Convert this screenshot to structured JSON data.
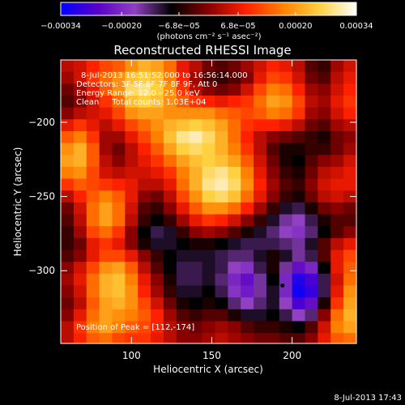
{
  "chart_data": {
    "type": "heatmap",
    "title": "Reconstructed RHESSI Image",
    "xlabel": "Heliocentric X (arcsec)",
    "ylabel": "Heliocentric Y (arcsec)",
    "xlim": [
      56,
      240
    ],
    "ylim": [
      -349,
      -158
    ],
    "x_ticks": [
      100,
      150,
      200
    ],
    "y_ticks": [
      -200,
      -250,
      -300
    ],
    "colorbar": {
      "range": [
        -0.00034,
        0.00034
      ],
      "ticks": [
        {
          "value": -0.00034,
          "label": "−0.00034"
        },
        {
          "value": -0.0002,
          "label": "−0.00020"
        },
        {
          "value": -6.8e-05,
          "label": "−6.8e−05"
        },
        {
          "value": 6.8e-05,
          "label": "6.8e−05"
        },
        {
          "value": 0.0002,
          "label": "0.00020"
        },
        {
          "value": 0.00034,
          "label": "0.00034"
        }
      ],
      "unit_label": "(photons cm⁻² s⁻¹ asec⁻²)",
      "colormap": [
        "#0000ff",
        "#5a00c8",
        "#9040c0",
        "#000000",
        "#880000",
        "#ff2000",
        "#ff8000",
        "#ffd040",
        "#ffffff"
      ]
    },
    "annotations": [
      "8-Jul-2013 16:51:52.000 to 16:56:14.000",
      "Detectors: 3F 5F 6F 7F 8F 9F, Att 0",
      "Energy Range: 12.0 - 25.0 keV",
      "Clean     Total counts: 1.03E+04"
    ],
    "peak_text": "Position of Peak = [112,-174]",
    "peak": [
      112,
      -174
    ],
    "marker": [
      194,
      -310
    ],
    "cells_x": [
      60,
      68,
      76,
      84,
      92,
      100,
      108,
      116,
      124,
      132,
      140,
      148,
      156,
      164,
      172,
      180,
      188,
      196,
      204,
      212,
      220,
      228,
      236
    ],
    "cells_y": [
      -162,
      -170,
      -178,
      -186,
      -194,
      -202,
      -210,
      -218,
      -226,
      -234,
      -242,
      -250,
      -258,
      -266,
      -274,
      -282,
      -290,
      -298,
      -306,
      -314,
      -322,
      -330,
      -338,
      -346
    ],
    "grid_values": [
      [
        0.1,
        0.15,
        0.25,
        0.35,
        0.4,
        0.55,
        0.65,
        0.6,
        0.45,
        0.2,
        0.1,
        -0.05,
        -0.1,
        -0.05,
        0.05,
        0.15,
        0.25,
        0.2,
        0.1,
        -0.1,
        -0.15,
        0.05,
        0.15
      ],
      [
        0.05,
        0.15,
        0.3,
        0.45,
        0.55,
        0.7,
        0.75,
        0.7,
        0.5,
        0.25,
        0.05,
        -0.1,
        -0.15,
        -0.1,
        0.0,
        0.2,
        0.35,
        0.3,
        0.15,
        -0.05,
        -0.1,
        0.1,
        0.2
      ],
      [
        -0.05,
        0.05,
        0.2,
        0.4,
        0.55,
        0.8,
        0.85,
        0.75,
        0.55,
        0.3,
        0.1,
        0.0,
        -0.05,
        0.0,
        0.15,
        0.35,
        0.5,
        0.45,
        0.25,
        0.05,
        0.0,
        0.15,
        0.25
      ],
      [
        -0.1,
        0.0,
        0.15,
        0.3,
        0.45,
        0.7,
        0.75,
        0.7,
        0.55,
        0.4,
        0.3,
        0.25,
        0.2,
        0.25,
        0.3,
        0.45,
        0.6,
        0.55,
        0.35,
        0.1,
        0.05,
        0.2,
        0.3
      ],
      [
        0.0,
        0.1,
        0.15,
        0.2,
        0.35,
        0.55,
        0.6,
        0.6,
        0.55,
        0.55,
        0.55,
        0.55,
        0.45,
        0.4,
        0.35,
        0.4,
        0.5,
        0.45,
        0.3,
        0.05,
        0.0,
        0.15,
        0.25
      ],
      [
        0.2,
        0.3,
        0.2,
        0.1,
        0.2,
        0.35,
        0.45,
        0.55,
        0.65,
        0.7,
        0.75,
        0.7,
        0.6,
        0.45,
        0.3,
        0.25,
        0.25,
        0.2,
        0.1,
        -0.05,
        -0.1,
        0.05,
        0.1
      ],
      [
        0.4,
        0.5,
        0.3,
        0.05,
        0.05,
        0.2,
        0.35,
        0.5,
        0.7,
        0.85,
        0.9,
        0.8,
        0.65,
        0.45,
        0.25,
        0.1,
        0.0,
        -0.05,
        -0.1,
        -0.15,
        -0.2,
        -0.05,
        0.0
      ],
      [
        0.55,
        0.65,
        0.4,
        0.05,
        -0.05,
        0.1,
        0.25,
        0.4,
        0.6,
        0.75,
        0.8,
        0.75,
        0.65,
        0.5,
        0.3,
        0.1,
        -0.1,
        -0.2,
        -0.2,
        -0.15,
        -0.15,
        -0.05,
        0.05
      ],
      [
        0.6,
        0.65,
        0.4,
        0.1,
        0.0,
        0.1,
        0.2,
        0.3,
        0.45,
        0.6,
        0.7,
        0.75,
        0.7,
        0.6,
        0.4,
        0.15,
        -0.05,
        -0.2,
        -0.25,
        -0.1,
        0.0,
        0.05,
        0.15
      ],
      [
        0.5,
        0.55,
        0.35,
        0.15,
        0.1,
        0.15,
        0.15,
        0.2,
        0.3,
        0.5,
        0.65,
        0.8,
        0.85,
        0.75,
        0.5,
        0.2,
        0.0,
        -0.15,
        -0.2,
        -0.05,
        0.1,
        0.15,
        0.2
      ],
      [
        0.3,
        0.4,
        0.35,
        0.3,
        0.25,
        0.2,
        0.1,
        0.1,
        0.2,
        0.45,
        0.65,
        0.85,
        0.9,
        0.8,
        0.55,
        0.25,
        0.05,
        -0.1,
        -0.15,
        0.0,
        0.15,
        0.2,
        0.2
      ],
      [
        0.1,
        0.25,
        0.4,
        0.5,
        0.4,
        0.2,
        0.0,
        -0.05,
        0.1,
        0.35,
        0.55,
        0.75,
        0.8,
        0.7,
        0.45,
        0.2,
        0.0,
        -0.15,
        -0.2,
        -0.05,
        0.1,
        0.15,
        0.1
      ],
      [
        -0.05,
        0.15,
        0.45,
        0.6,
        0.45,
        0.15,
        -0.1,
        -0.15,
        0.0,
        0.2,
        0.4,
        0.55,
        0.55,
        0.45,
        0.25,
        0.05,
        -0.15,
        -0.3,
        -0.35,
        -0.2,
        -0.05,
        0.0,
        -0.05
      ],
      [
        -0.1,
        0.1,
        0.45,
        0.6,
        0.45,
        0.1,
        -0.15,
        -0.25,
        -0.15,
        0.05,
        0.2,
        0.3,
        0.25,
        0.15,
        0.0,
        -0.15,
        -0.3,
        -0.45,
        -0.5,
        -0.35,
        -0.2,
        -0.1,
        -0.1
      ],
      [
        -0.15,
        0.05,
        0.35,
        0.45,
        0.3,
        0.0,
        -0.25,
        -0.35,
        -0.3,
        -0.15,
        0.0,
        0.05,
        0.0,
        -0.1,
        -0.2,
        -0.3,
        -0.4,
        -0.5,
        -0.55,
        -0.4,
        -0.25,
        -0.1,
        0.0
      ],
      [
        -0.15,
        -0.05,
        0.2,
        0.3,
        0.2,
        0.0,
        -0.2,
        -0.3,
        -0.3,
        -0.25,
        -0.2,
        -0.2,
        -0.25,
        -0.3,
        -0.35,
        -0.35,
        -0.35,
        -0.4,
        -0.45,
        -0.3,
        -0.1,
        0.1,
        0.2
      ],
      [
        -0.1,
        0.0,
        0.2,
        0.35,
        0.35,
        0.2,
        0.0,
        -0.15,
        -0.25,
        -0.3,
        -0.3,
        -0.3,
        -0.35,
        -0.4,
        -0.4,
        -0.3,
        -0.2,
        -0.3,
        -0.45,
        -0.35,
        -0.1,
        0.2,
        0.35
      ],
      [
        0.0,
        0.15,
        0.35,
        0.55,
        0.6,
        0.4,
        0.1,
        -0.1,
        -0.25,
        -0.35,
        -0.35,
        -0.3,
        -0.35,
        -0.5,
        -0.55,
        -0.35,
        -0.2,
        -0.45,
        -0.7,
        -0.6,
        -0.25,
        0.2,
        0.4
      ],
      [
        0.05,
        0.2,
        0.45,
        0.65,
        0.7,
        0.5,
        0.2,
        0.0,
        -0.2,
        -0.35,
        -0.35,
        -0.3,
        -0.4,
        -0.6,
        -0.7,
        -0.45,
        -0.25,
        -0.6,
        -0.9,
        -0.8,
        -0.35,
        0.15,
        0.45
      ],
      [
        0.0,
        0.15,
        0.45,
        0.65,
        0.7,
        0.55,
        0.25,
        0.05,
        -0.15,
        -0.3,
        -0.3,
        -0.25,
        -0.35,
        -0.55,
        -0.65,
        -0.45,
        -0.3,
        -0.6,
        -0.95,
        -0.85,
        -0.35,
        0.2,
        0.55
      ],
      [
        -0.05,
        0.1,
        0.4,
        0.6,
        0.65,
        0.55,
        0.35,
        0.15,
        -0.05,
        -0.2,
        -0.25,
        -0.2,
        -0.25,
        -0.4,
        -0.5,
        -0.4,
        -0.3,
        -0.5,
        -0.8,
        -0.7,
        -0.2,
        0.3,
        0.6
      ],
      [
        0.0,
        0.2,
        0.45,
        0.6,
        0.55,
        0.5,
        0.4,
        0.25,
        0.05,
        -0.1,
        -0.15,
        -0.1,
        -0.1,
        -0.2,
        -0.3,
        -0.3,
        -0.25,
        -0.35,
        -0.5,
        -0.4,
        0.0,
        0.45,
        0.65
      ],
      [
        0.1,
        0.3,
        0.5,
        0.6,
        0.5,
        0.4,
        0.35,
        0.25,
        0.1,
        0.0,
        -0.05,
        0.0,
        0.05,
        0.0,
        -0.1,
        -0.15,
        -0.15,
        -0.2,
        -0.25,
        -0.1,
        0.15,
        0.5,
        0.6
      ],
      [
        0.1,
        0.25,
        0.4,
        0.45,
        0.35,
        0.3,
        0.3,
        0.2,
        0.1,
        0.0,
        0.0,
        0.05,
        0.1,
        0.05,
        0.0,
        -0.05,
        -0.05,
        -0.1,
        -0.1,
        0.0,
        0.2,
        0.4,
        0.45
      ]
    ]
  },
  "timestamp": "8-Jul-2013 17:43"
}
